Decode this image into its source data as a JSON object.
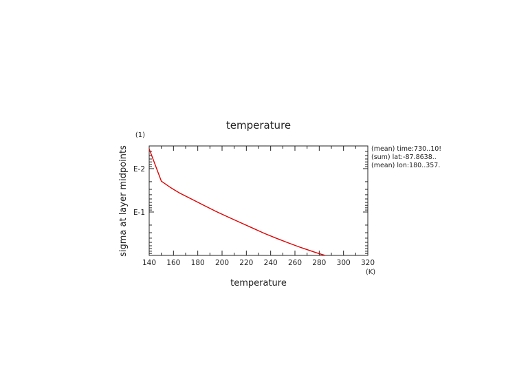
{
  "chart_data": {
    "type": "line",
    "title": "temperature",
    "xlabel": "temperature",
    "x_unit": "(K)",
    "ylabel": "sigma at layer midpoints",
    "y_unit": "(1)",
    "xlim": [
      140,
      320
    ],
    "ylim": [
      0.003,
      1.0
    ],
    "y_scale": "log",
    "x_ticks": [
      140,
      160,
      180,
      200,
      220,
      240,
      260,
      280,
      300,
      320
    ],
    "y_tick_labels": [
      {
        "value": 0.01,
        "label": "E-2"
      },
      {
        "value": 0.1,
        "label": "E-1"
      }
    ],
    "line_color": "#e00000",
    "grid": false,
    "annotations": [
      "(mean) time:730..10!",
      "(sum) lat:-87.8638..",
      "(mean) lon:180..357."
    ],
    "series": [
      {
        "x": [
          140,
          150,
          158,
          165,
          175,
          185,
          195,
          205,
          215,
          225,
          235,
          245,
          255,
          265,
          275,
          280,
          285
        ],
        "y": [
          0.0035,
          0.0195,
          0.0278,
          0.0365,
          0.0505,
          0.07,
          0.0968,
          0.13,
          0.175,
          0.234,
          0.312,
          0.405,
          0.52,
          0.66,
          0.82,
          0.91,
          1.0
        ]
      }
    ]
  }
}
